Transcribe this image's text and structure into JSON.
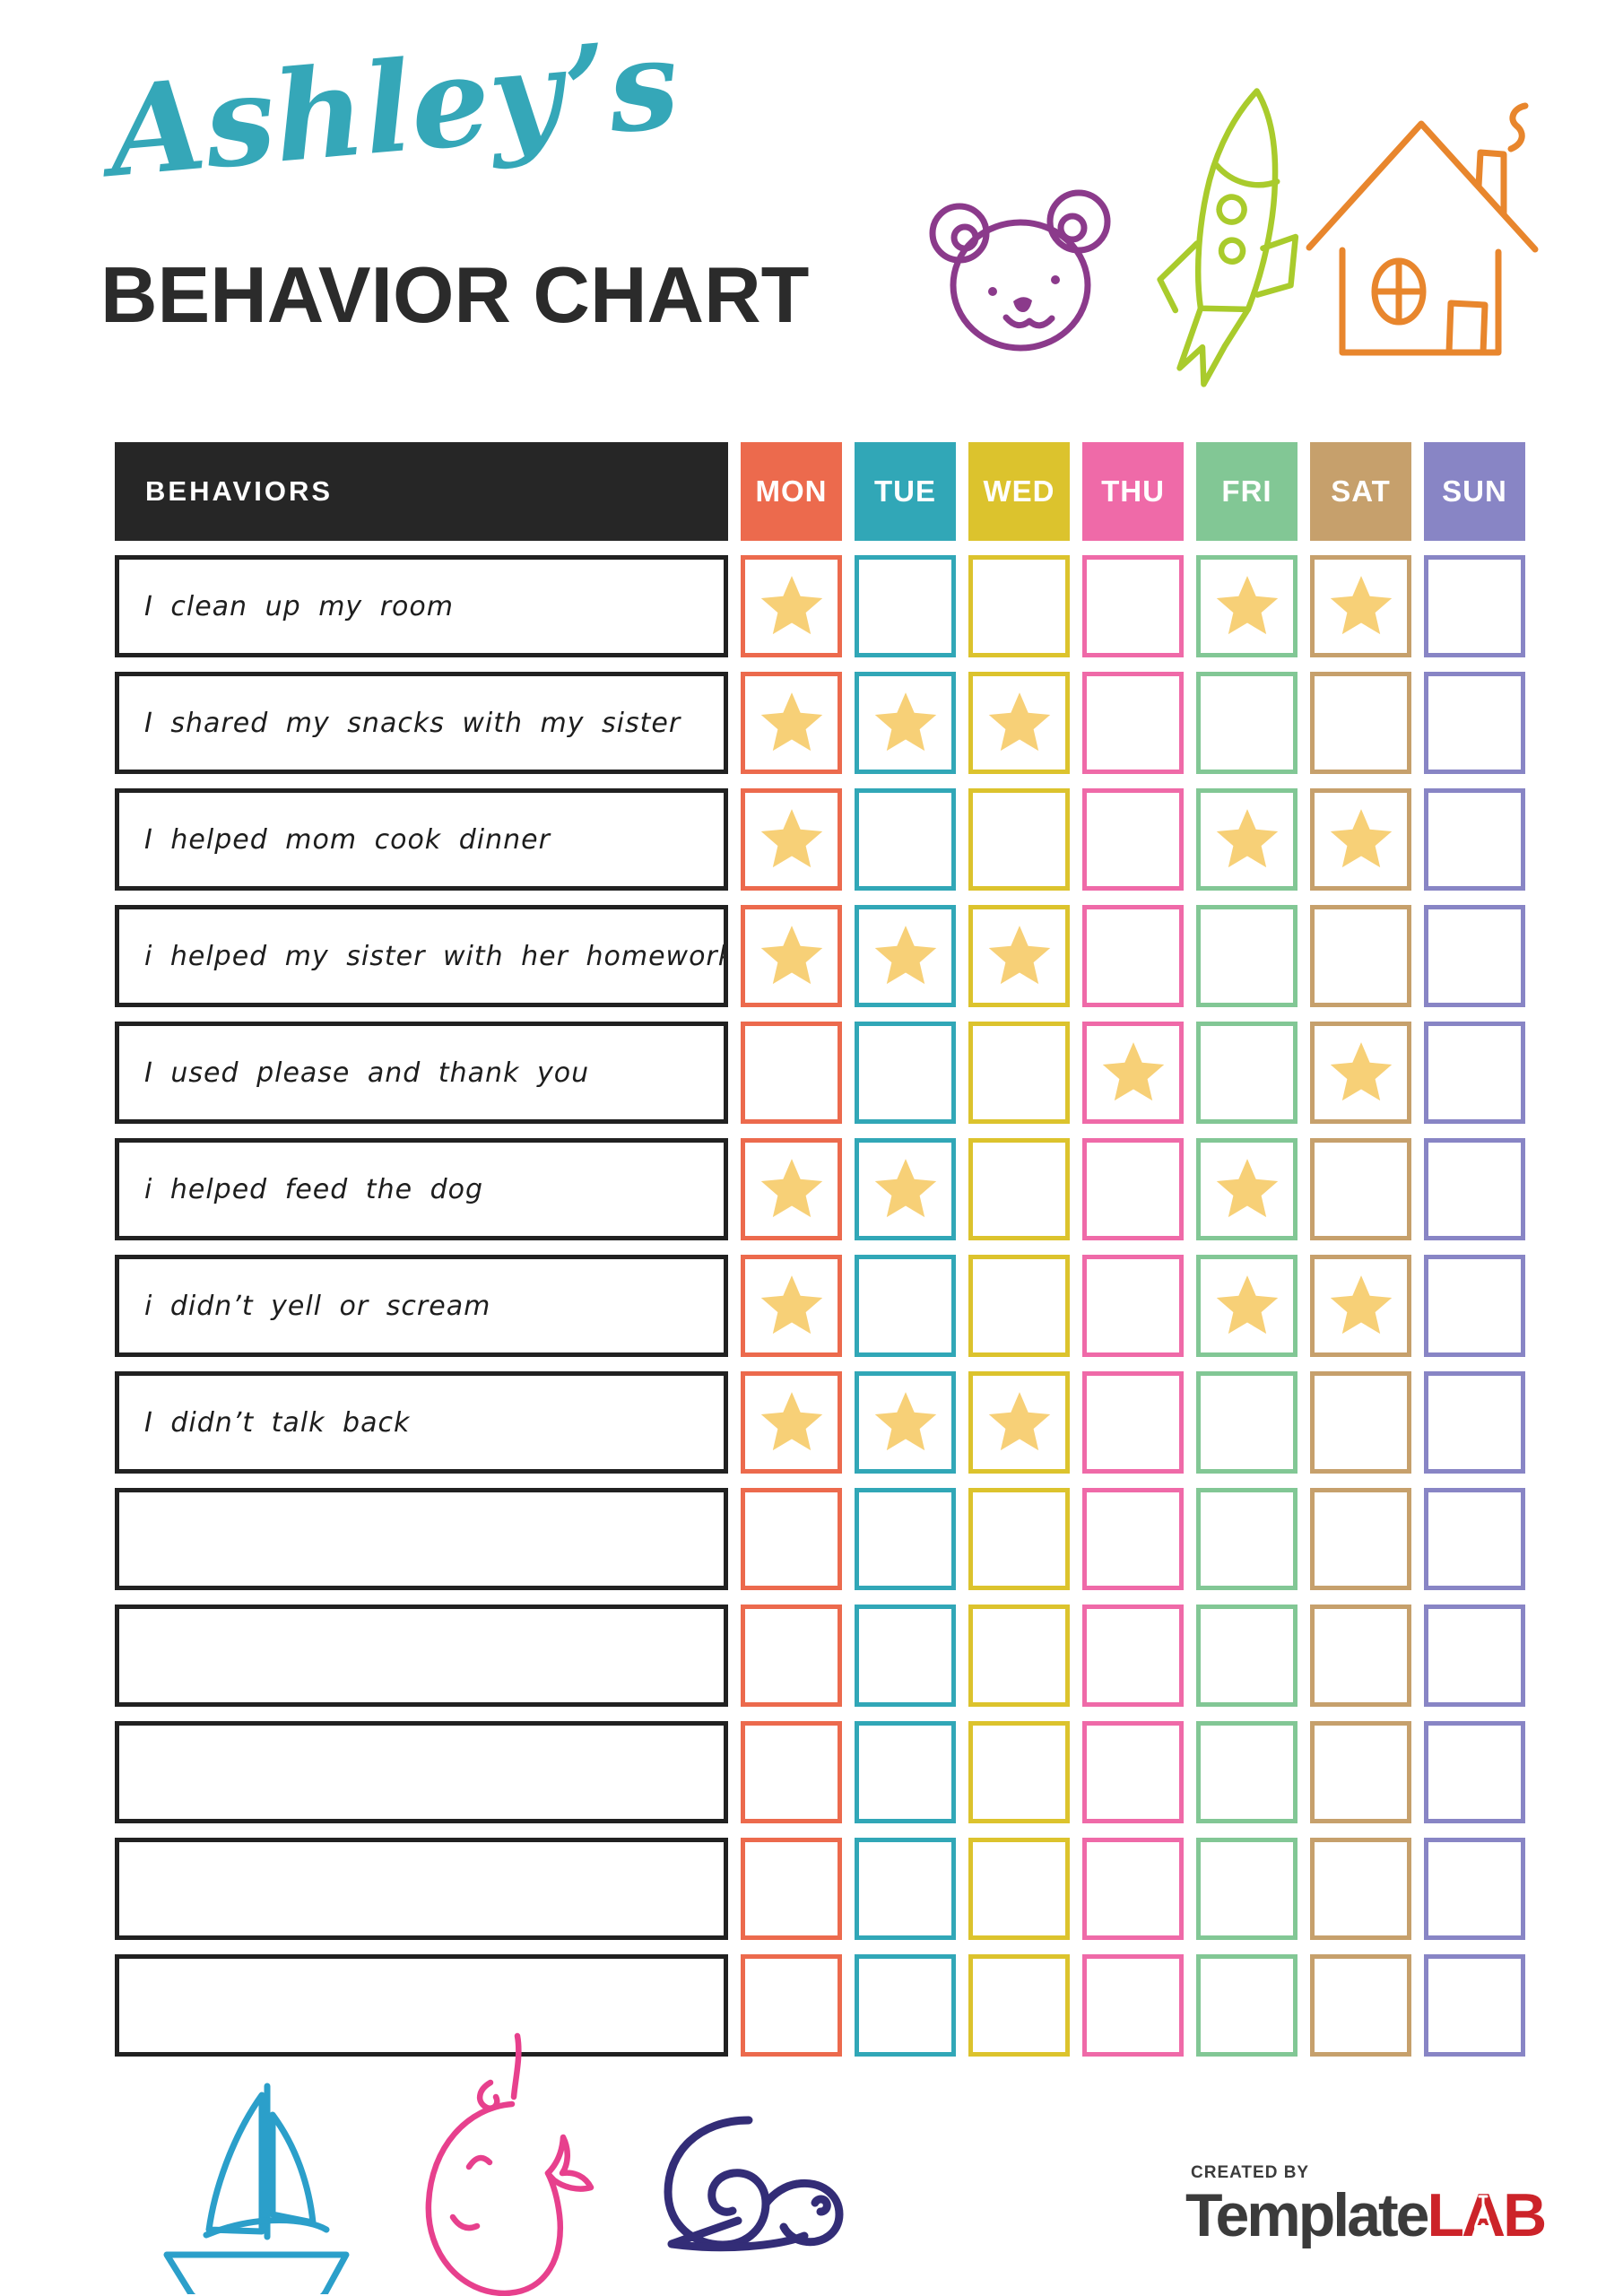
{
  "title": {
    "name": "Ashley’s",
    "name_color": "#35a7b8",
    "subtitle": "BEHAVIOR CHART"
  },
  "table": {
    "behaviors_header": "BEHAVIORS",
    "days": [
      {
        "label": "MON",
        "color": "#ec6a4d"
      },
      {
        "label": "TUE",
        "color": "#31a7b7"
      },
      {
        "label": "WED",
        "color": "#dcc32d"
      },
      {
        "label": "THU",
        "color": "#ef6aa8"
      },
      {
        "label": "FRI",
        "color": "#82c795"
      },
      {
        "label": "SAT",
        "color": "#c6a06c"
      },
      {
        "label": "SUN",
        "color": "#8885c5"
      }
    ],
    "star_color": "#f7d077",
    "rows": [
      {
        "label": "I clean up my room",
        "stars": [
          "MON",
          "FRI",
          "SAT"
        ]
      },
      {
        "label": "I shared my snacks with my sister",
        "stars": [
          "MON",
          "TUE",
          "WED"
        ]
      },
      {
        "label": "I helped mom cook dinner",
        "stars": [
          "MON",
          "FRI",
          "SAT"
        ]
      },
      {
        "label": "i helped my sister with her homework",
        "stars": [
          "MON",
          "TUE",
          "WED"
        ]
      },
      {
        "label": "I used please and thank you",
        "stars": [
          "THU",
          "SAT"
        ]
      },
      {
        "label": "i helped feed the dog",
        "stars": [
          "MON",
          "TUE",
          "FRI"
        ]
      },
      {
        "label": "i didn’t yell or scream",
        "stars": [
          "MON",
          "FRI",
          "SAT"
        ]
      },
      {
        "label": "I didn’t talk back",
        "stars": [
          "MON",
          "TUE",
          "WED"
        ]
      },
      {
        "label": "",
        "stars": []
      },
      {
        "label": "",
        "stars": []
      },
      {
        "label": "",
        "stars": []
      },
      {
        "label": "",
        "stars": []
      },
      {
        "label": "",
        "stars": []
      }
    ]
  },
  "decorations": {
    "top_icons": [
      "bear-icon",
      "rocket-icon",
      "house-icon"
    ],
    "bottom_icons": [
      "sailboat-icon",
      "whale-icon",
      "snail-icon"
    ],
    "colors": {
      "bear": "#8b3a8b",
      "rocket": "#a9cb2c",
      "house": "#e8862d",
      "sailboat": "#2b9fca",
      "whale": "#e7408d",
      "snail": "#332d77"
    }
  },
  "footer": {
    "created_by": "CREATED BY",
    "brand_main": "Template",
    "brand_accent": "LAB",
    "brand_main_color": "#3b3b3b",
    "brand_accent_color": "#cc2329"
  }
}
